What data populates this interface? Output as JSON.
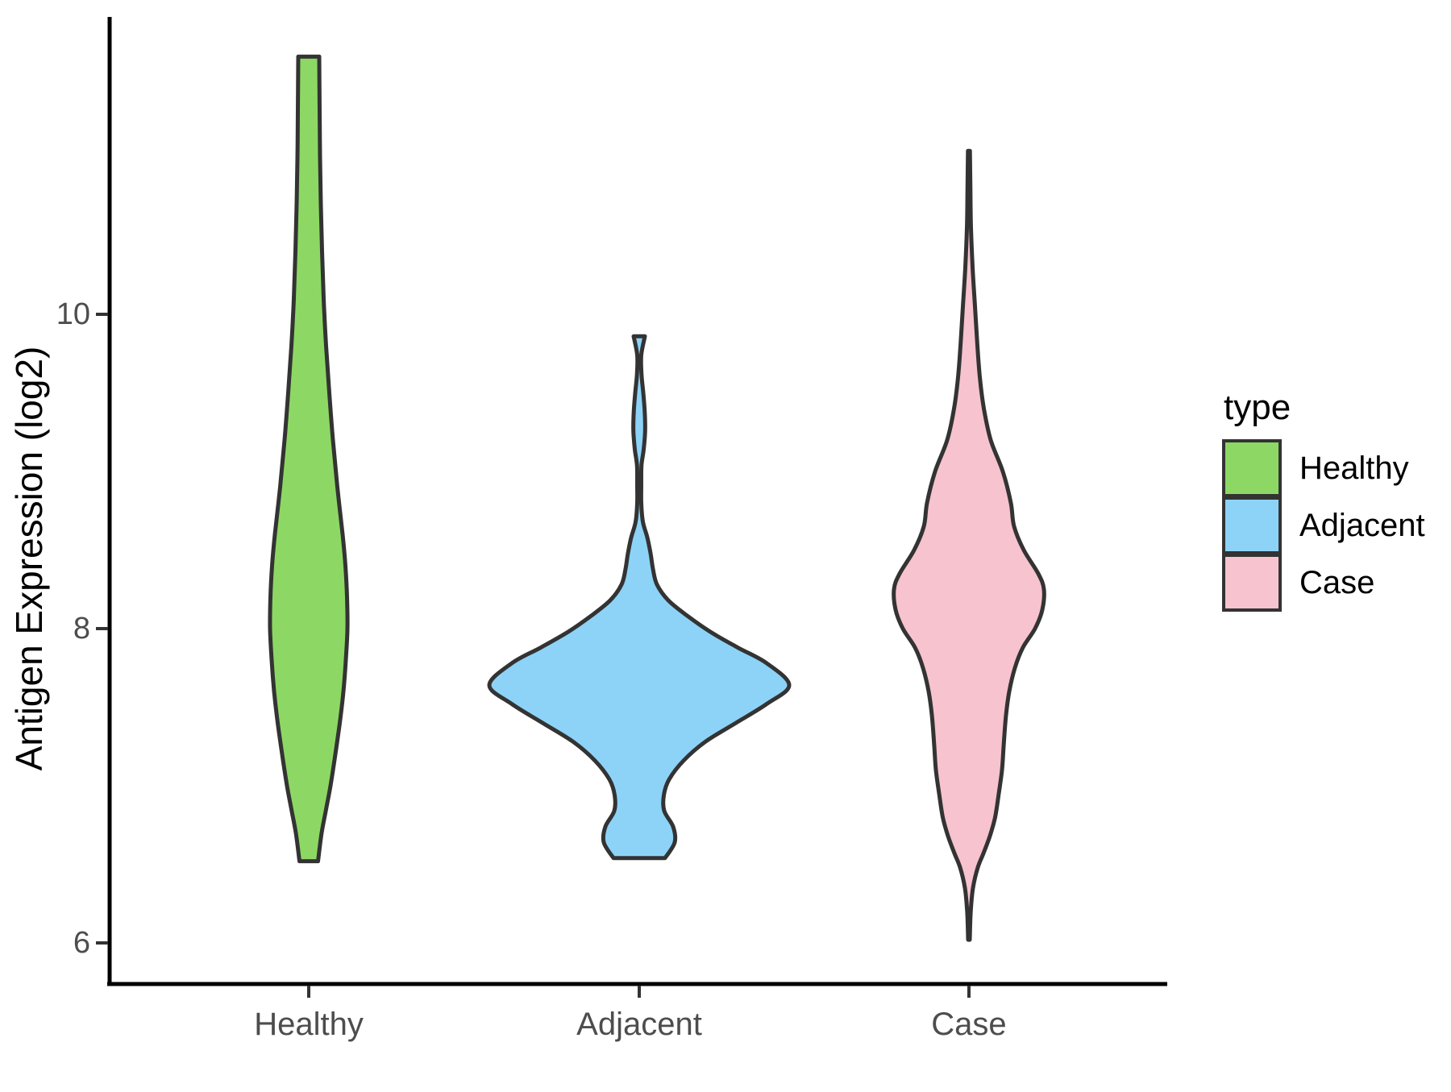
{
  "chart_data": {
    "type": "violin",
    "title": "",
    "xlabel": "",
    "ylabel": "Antigen Expression (log2)",
    "categories": [
      "Healthy",
      "Adjacent",
      "Case"
    ],
    "y_tick_labels": [
      "10",
      "8",
      "6"
    ],
    "y_ticks": [
      10,
      8,
      6
    ],
    "y_axis_range_visible": [
      5.74,
      12.14
    ],
    "grid": false,
    "legend": {
      "title": "type",
      "position": "right",
      "entries": [
        {
          "label": "Healthy",
          "color": "#8DD864"
        },
        {
          "label": "Adjacent",
          "color": "#8DD3F7"
        },
        {
          "label": "Case",
          "color": "#F6C3CF"
        }
      ]
    },
    "style": {
      "outline_color": "#333333",
      "axis_line_color": "#000000",
      "tick_mark_color": "#333333",
      "tick_label_color": "#4d4d4d",
      "background": "#ffffff"
    },
    "series": [
      {
        "name": "Healthy",
        "fill": "#8DD864",
        "value_min": 6.52,
        "value_max": 11.64,
        "flat_ends": true,
        "profile": [
          [
            11.64,
            13
          ],
          [
            11.3,
            13.5
          ],
          [
            11.0,
            14
          ],
          [
            10.7,
            15
          ],
          [
            10.4,
            16.5
          ],
          [
            10.1,
            18.5
          ],
          [
            9.8,
            21.5
          ],
          [
            9.5,
            25.5
          ],
          [
            9.2,
            30
          ],
          [
            8.9,
            35.5
          ],
          [
            8.6,
            42
          ],
          [
            8.4,
            45.5
          ],
          [
            8.2,
            47.5
          ],
          [
            8.0,
            48
          ],
          [
            7.8,
            46
          ],
          [
            7.6,
            43
          ],
          [
            7.4,
            38.5
          ],
          [
            7.2,
            33
          ],
          [
            7.0,
            27
          ],
          [
            6.85,
            21.5
          ],
          [
            6.7,
            16
          ],
          [
            6.52,
            11.5
          ]
        ]
      },
      {
        "name": "Adjacent",
        "fill": "#8DD3F7",
        "value_min": 6.54,
        "value_max": 9.86,
        "flat_ends": true,
        "profile": [
          [
            9.86,
            7
          ],
          [
            9.74,
            2.5
          ],
          [
            9.62,
            2.8
          ],
          [
            9.5,
            5
          ],
          [
            9.38,
            6.8
          ],
          [
            9.26,
            7.3
          ],
          [
            9.14,
            5.5
          ],
          [
            9.04,
            2.8
          ],
          [
            8.92,
            2.5
          ],
          [
            8.8,
            2.5
          ],
          [
            8.68,
            4.5
          ],
          [
            8.58,
            10
          ],
          [
            8.48,
            14
          ],
          [
            8.38,
            17
          ],
          [
            8.28,
            22
          ],
          [
            8.18,
            36
          ],
          [
            8.08,
            60
          ],
          [
            7.98,
            88
          ],
          [
            7.88,
            122
          ],
          [
            7.78,
            158
          ],
          [
            7.64,
            186
          ],
          [
            7.52,
            158
          ],
          [
            7.4,
            120
          ],
          [
            7.28,
            82
          ],
          [
            7.16,
            55
          ],
          [
            7.04,
            37
          ],
          [
            6.94,
            30.5
          ],
          [
            6.84,
            31
          ],
          [
            6.74,
            42
          ],
          [
            6.64,
            44
          ],
          [
            6.54,
            32
          ]
        ]
      },
      {
        "name": "Case",
        "fill": "#F6C3CF",
        "value_min": 6.02,
        "value_max": 11.04,
        "flat_ends": false,
        "profile": [
          [
            11.04,
            1.2
          ],
          [
            10.8,
            1.8
          ],
          [
            10.55,
            2.5
          ],
          [
            10.3,
            4.5
          ],
          [
            10.05,
            7.5
          ],
          [
            9.8,
            10.5
          ],
          [
            9.6,
            13.5
          ],
          [
            9.4,
            18.5
          ],
          [
            9.2,
            27
          ],
          [
            9.0,
            42
          ],
          [
            8.8,
            52
          ],
          [
            8.65,
            56
          ],
          [
            8.5,
            68
          ],
          [
            8.35,
            86
          ],
          [
            8.25,
            93
          ],
          [
            8.12,
            91
          ],
          [
            8.0,
            82
          ],
          [
            7.88,
            67
          ],
          [
            7.75,
            57
          ],
          [
            7.6,
            50
          ],
          [
            7.45,
            46
          ],
          [
            7.25,
            43
          ],
          [
            7.1,
            41
          ],
          [
            6.95,
            37
          ],
          [
            6.8,
            32.5
          ],
          [
            6.68,
            26
          ],
          [
            6.57,
            18
          ],
          [
            6.48,
            11
          ],
          [
            6.35,
            5
          ],
          [
            6.2,
            2.2
          ],
          [
            6.02,
            1
          ]
        ]
      }
    ]
  }
}
